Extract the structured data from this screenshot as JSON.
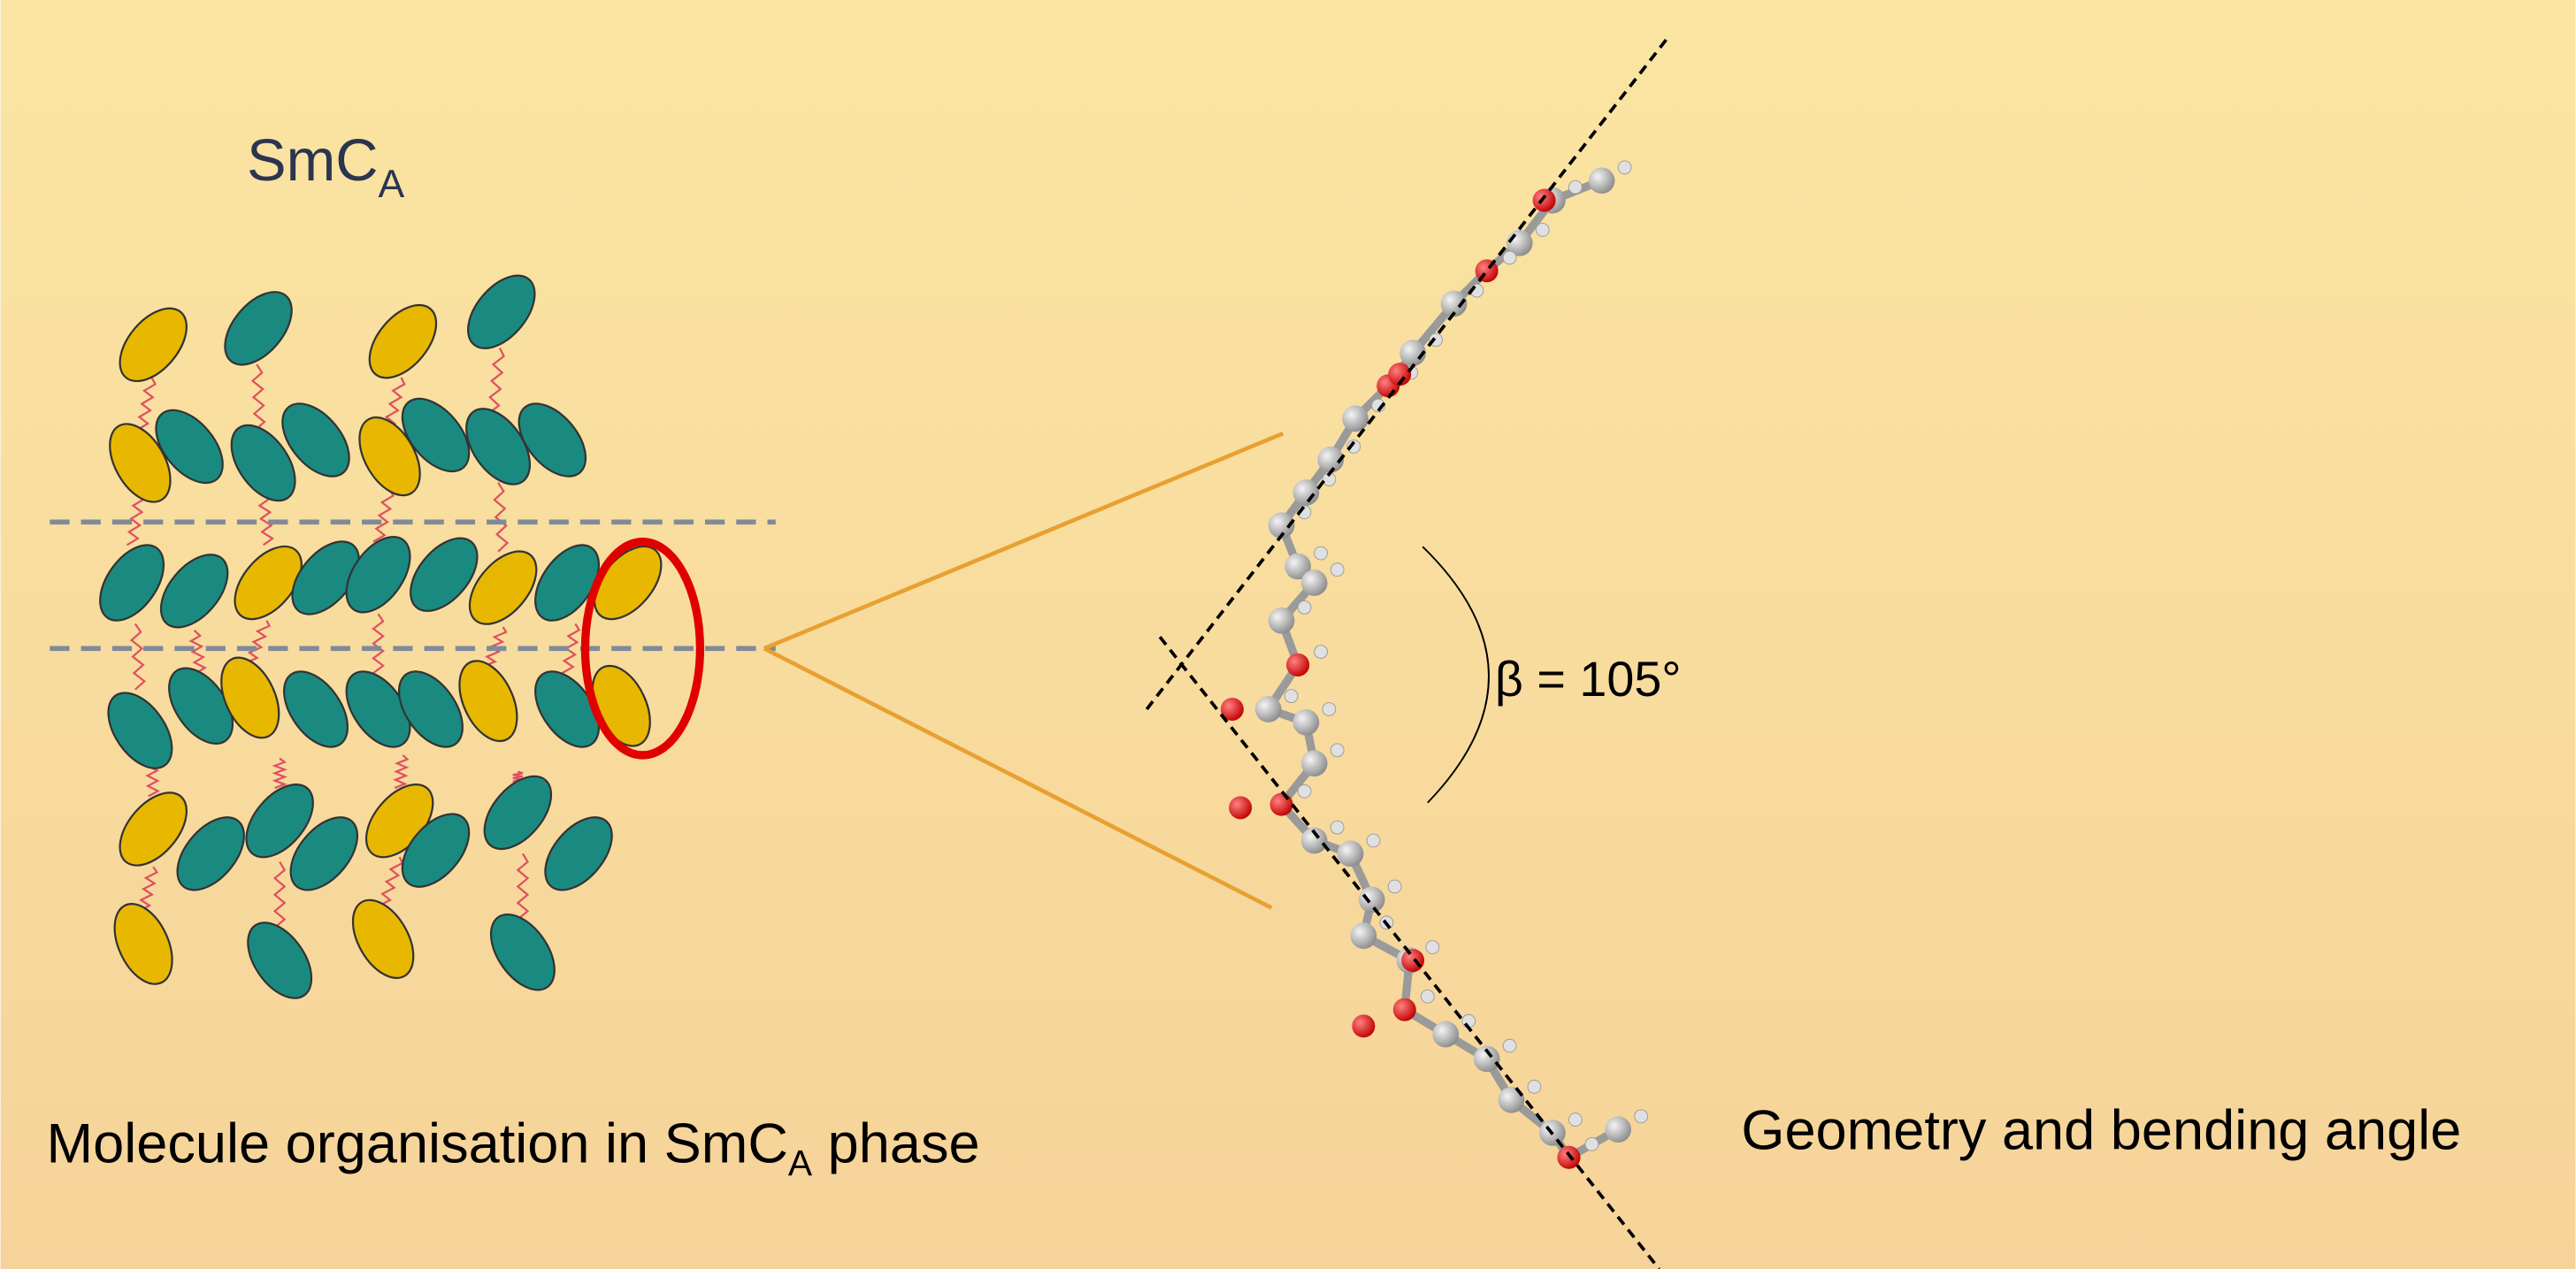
{
  "phase_label": {
    "main": "SmC",
    "sub": "A"
  },
  "left_caption": {
    "before": "Molecule organisation in SmC",
    "sub": "A",
    "after": " phase"
  },
  "angle_label": "β = 105°",
  "right_caption": "Geometry and bending angle"
}
